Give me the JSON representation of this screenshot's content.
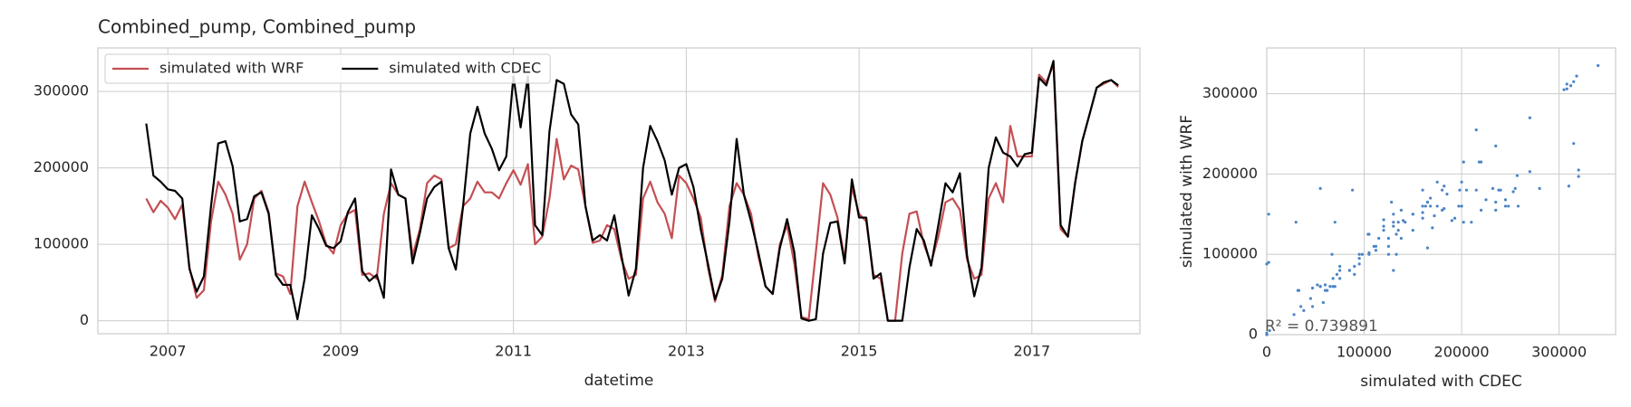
{
  "chart_data": [
    {
      "type": "line",
      "title": "Combined_pump, Combined_pump",
      "xlabel": "datetime",
      "xlim": [
        2006.19,
        2018.25
      ],
      "ylim": [
        -17000,
        357000
      ],
      "xticks": [
        2007,
        2009,
        2011,
        2013,
        2015,
        2017
      ],
      "yticks": [
        0,
        100000,
        200000,
        300000
      ],
      "grid": true,
      "legend": "upper left",
      "x": [
        2006.75,
        2006.833,
        2006.917,
        2007.0,
        2007.083,
        2007.167,
        2007.25,
        2007.333,
        2007.417,
        2007.5,
        2007.583,
        2007.667,
        2007.75,
        2007.833,
        2007.917,
        2008.0,
        2008.083,
        2008.167,
        2008.25,
        2008.333,
        2008.417,
        2008.5,
        2008.583,
        2008.667,
        2008.75,
        2008.833,
        2008.917,
        2009.0,
        2009.083,
        2009.167,
        2009.25,
        2009.333,
        2009.417,
        2009.5,
        2009.583,
        2009.667,
        2009.75,
        2009.833,
        2009.917,
        2010.0,
        2010.083,
        2010.167,
        2010.25,
        2010.333,
        2010.417,
        2010.5,
        2010.583,
        2010.667,
        2010.75,
        2010.833,
        2010.917,
        2011.0,
        2011.083,
        2011.167,
        2011.25,
        2011.333,
        2011.417,
        2011.5,
        2011.583,
        2011.667,
        2011.75,
        2011.833,
        2011.917,
        2012.0,
        2012.083,
        2012.167,
        2012.25,
        2012.333,
        2012.417,
        2012.5,
        2012.583,
        2012.667,
        2012.75,
        2012.833,
        2012.917,
        2013.0,
        2013.083,
        2013.167,
        2013.25,
        2013.333,
        2013.417,
        2013.5,
        2013.583,
        2013.667,
        2013.75,
        2013.833,
        2013.917,
        2014.0,
        2014.083,
        2014.167,
        2014.25,
        2014.333,
        2014.417,
        2014.5,
        2014.583,
        2014.667,
        2014.75,
        2014.833,
        2014.917,
        2015.0,
        2015.083,
        2015.167,
        2015.25,
        2015.333,
        2015.417,
        2015.5,
        2015.583,
        2015.667,
        2015.75,
        2015.833,
        2015.917,
        2016.0,
        2016.083,
        2016.167,
        2016.25,
        2016.333,
        2016.417,
        2016.5,
        2016.583,
        2016.667,
        2016.75,
        2016.833,
        2016.917,
        2017.0,
        2017.083,
        2017.167,
        2017.25,
        2017.333,
        2017.417,
        2017.5,
        2017.583,
        2017.667,
        2017.75,
        2017.833,
        2017.917,
        2018.0
      ],
      "series": [
        {
          "name": "simulated with WRF",
          "color": "#c44e52",
          "values": [
            160000,
            142000,
            157000,
            148000,
            133000,
            152000,
            70000,
            30000,
            40000,
            130000,
            182000,
            165000,
            140000,
            80000,
            100000,
            160000,
            170000,
            142000,
            62000,
            58000,
            35000,
            150000,
            182000,
            155000,
            130000,
            100000,
            88000,
            125000,
            140000,
            145000,
            60000,
            62000,
            55000,
            140000,
            180000,
            165000,
            160000,
            85000,
            120000,
            180000,
            190000,
            185000,
            95000,
            100000,
            150000,
            160000,
            182000,
            168000,
            168000,
            160000,
            180000,
            197000,
            178000,
            205000,
            100000,
            110000,
            160000,
            238000,
            185000,
            203000,
            198000,
            150000,
            102000,
            105000,
            125000,
            120000,
            80000,
            55000,
            60000,
            160000,
            182000,
            155000,
            140000,
            108000,
            190000,
            180000,
            160000,
            135000,
            70000,
            25000,
            60000,
            150000,
            180000,
            165000,
            140000,
            85000,
            45000,
            35000,
            100000,
            125000,
            75000,
            5000,
            2000,
            90000,
            180000,
            165000,
            135000,
            80000,
            175000,
            140000,
            130000,
            60000,
            55000,
            0,
            0,
            88000,
            140000,
            143000,
            100000,
            75000,
            110000,
            155000,
            160000,
            145000,
            80000,
            55000,
            60000,
            160000,
            180000,
            155000,
            255000,
            215000,
            215000,
            215000,
            322000,
            312000,
            335000,
            120000,
            110000,
            180000,
            235000,
            270000,
            305000,
            310000,
            315000,
            306000
          ]
        },
        {
          "name": "simulated with CDEC",
          "color": "#000000",
          "values": [
            258000,
            190000,
            182000,
            172000,
            170000,
            160000,
            68000,
            38000,
            58000,
            150000,
            232000,
            235000,
            202000,
            130000,
            133000,
            163000,
            168000,
            140000,
            60000,
            47000,
            47000,
            2000,
            55000,
            138000,
            120000,
            98000,
            95000,
            104000,
            142000,
            160000,
            65000,
            52000,
            60000,
            30000,
            198000,
            165000,
            160000,
            75000,
            115000,
            160000,
            175000,
            182000,
            95000,
            67000,
            150000,
            245000,
            280000,
            245000,
            225000,
            197000,
            215000,
            320000,
            253000,
            320000,
            125000,
            112000,
            248000,
            315000,
            310000,
            270000,
            257000,
            150000,
            105000,
            112000,
            105000,
            138000,
            85000,
            33000,
            68000,
            200000,
            255000,
            235000,
            210000,
            165000,
            200000,
            205000,
            175000,
            120000,
            75000,
            28000,
            55000,
            130000,
            238000,
            165000,
            130000,
            90000,
            45000,
            35000,
            95000,
            133000,
            90000,
            3000,
            0,
            2000,
            88000,
            128000,
            130000,
            75000,
            185000,
            135000,
            135000,
            55000,
            62000,
            0,
            0,
            0,
            70000,
            120000,
            105000,
            72000,
            125000,
            180000,
            168000,
            193000,
            85000,
            32000,
            70000,
            200000,
            240000,
            220000,
            215000,
            202000,
            218000,
            220000,
            318000,
            308000,
            340000,
            125000,
            110000,
            180000,
            235000,
            270000,
            305000,
            312000,
            315000,
            308000
          ]
        }
      ]
    },
    {
      "type": "scatter",
      "xlabel": "simulated with CDEC",
      "ylabel": "simulated with WRF",
      "xlim": [
        0,
        358000
      ],
      "ylim": [
        0,
        357000
      ],
      "xticks": [
        0,
        100000,
        200000,
        300000
      ],
      "yticks": [
        0,
        100000,
        200000,
        300000
      ],
      "grid": true,
      "color": "#4c84c4",
      "annotation": "R² = 0.739891"
    }
  ]
}
